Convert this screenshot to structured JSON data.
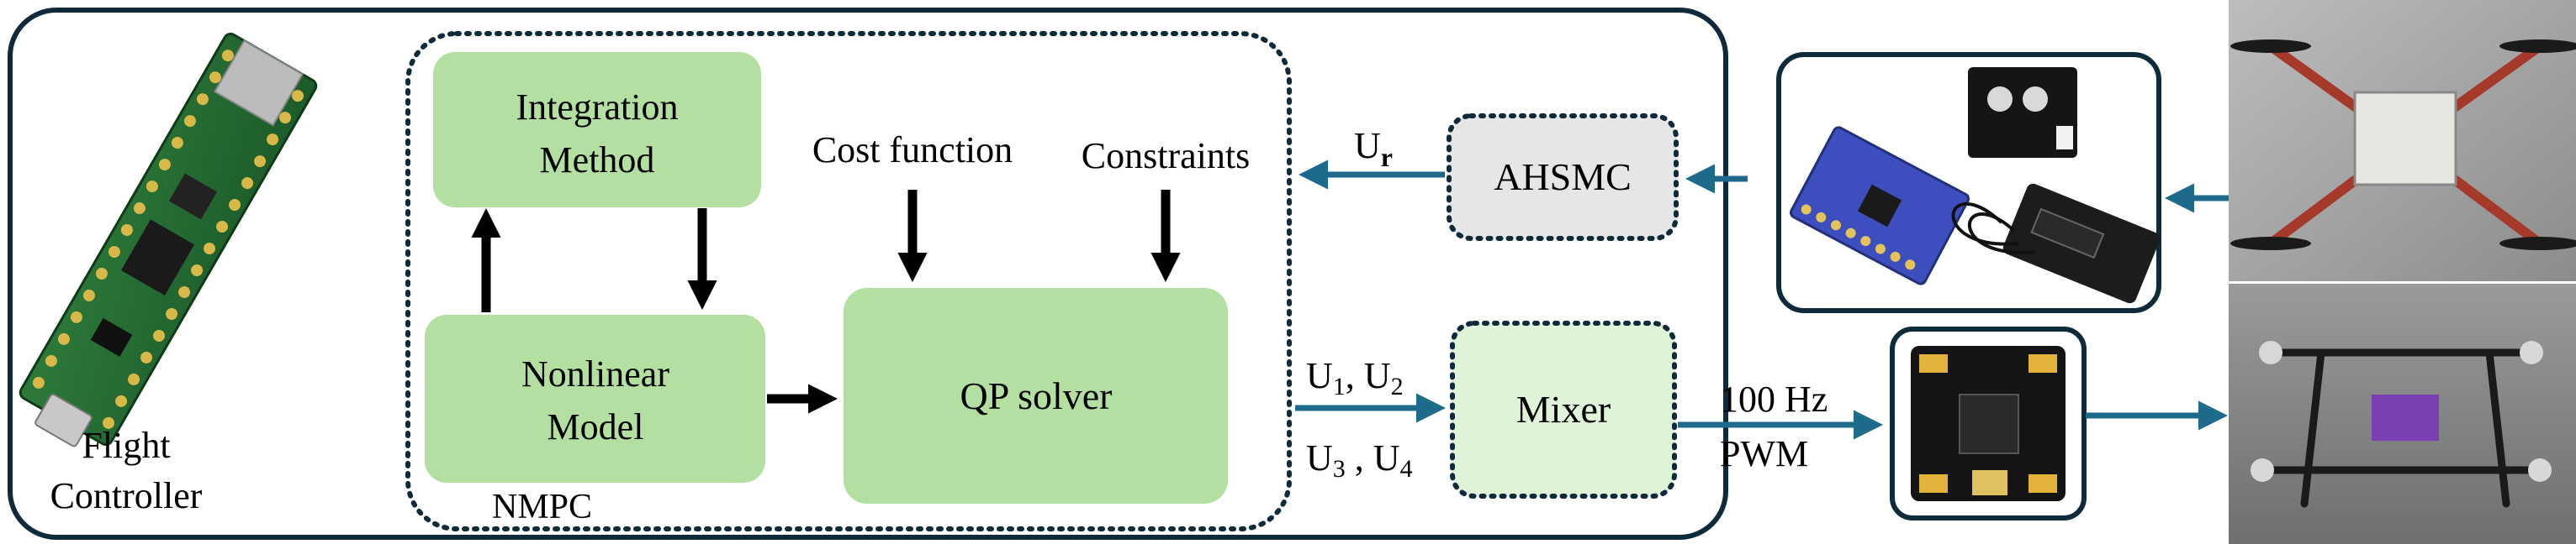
{
  "flight_controller": {
    "label_line1": "Flight",
    "label_line2": "Controller"
  },
  "nmpc": {
    "label": "NMPC",
    "integration": {
      "line1": "Integration",
      "line2": "Method"
    },
    "model": {
      "line1": "Nonlinear",
      "line2": "Model"
    },
    "cost_function": "Cost function",
    "constraints": "Constraints",
    "qp_solver": "QP solver"
  },
  "ahsmc": {
    "label": "AHSMC",
    "input_label": "U",
    "input_sub": "r"
  },
  "mixer": {
    "label": "Mixer",
    "input": {
      "u1": "U",
      "u1_sub": "1",
      "u2": "U",
      "u2_sub": "2",
      "u3": "U",
      "u3_sub": "3",
      "u4": "U",
      "u4_sub": "4"
    }
  },
  "pwm": {
    "line1": "100 Hz",
    "line2": "PWM"
  },
  "colors": {
    "block_fill": "#b3e0a1",
    "ahsmc_fill": "#e6e6e6",
    "mixer_fill": "#dff3d8",
    "frame_stroke": "#0f2a3a",
    "arrow_blue": "#1d6a8a"
  }
}
